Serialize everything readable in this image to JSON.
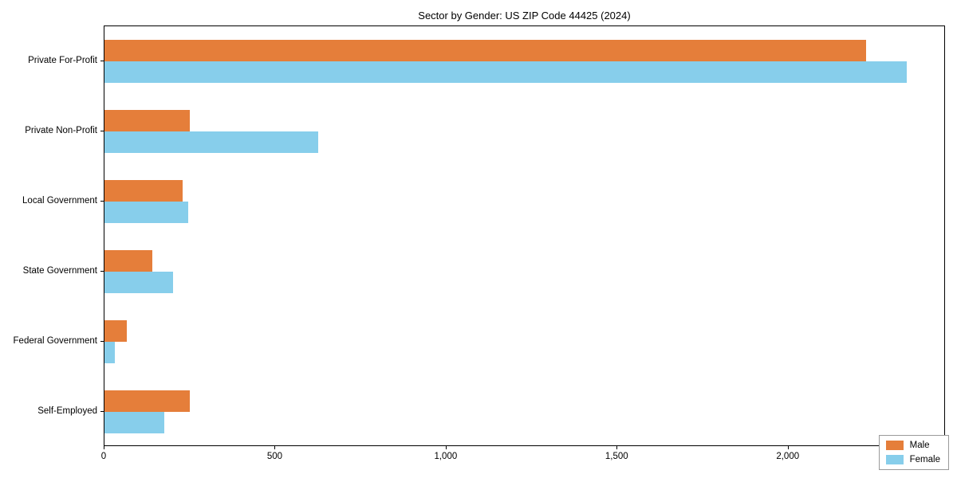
{
  "title": "Sector by Gender: US ZIP Code 44425 (2024)",
  "chart_data": {
    "type": "bar",
    "orientation": "horizontal",
    "title": "Sector by Gender: US ZIP Code 44425 (2024)",
    "categories": [
      "Private For-Profit",
      "Private Non-Profit",
      "Local Government",
      "State Government",
      "Federal Government",
      "Self-Employed"
    ],
    "series": [
      {
        "name": "Male",
        "color": "#e57e3a",
        "values": [
          2230,
          250,
          230,
          140,
          65,
          250
        ]
      },
      {
        "name": "Female",
        "color": "#87ceeb",
        "values": [
          2350,
          625,
          245,
          200,
          30,
          175
        ]
      }
    ],
    "xlim": [
      0,
      2460
    ],
    "xticks": [
      0,
      500,
      1000,
      1500,
      2000
    ],
    "xtick_labels": [
      "0",
      "500",
      "1,000",
      "1,500",
      "2,000"
    ],
    "xlabel": "",
    "ylabel": "",
    "grid": false,
    "legend_position": "lower right"
  }
}
